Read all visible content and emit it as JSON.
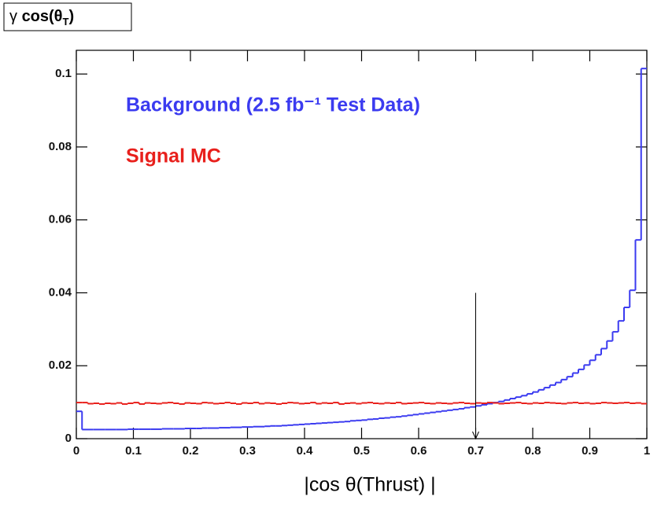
{
  "chart_data": {
    "type": "histogram",
    "title": {
      "symbol": "γ",
      "text": "cos(θ",
      "subscript": "T",
      "close": ")"
    },
    "x_label": "|cos θ(Thrust) |",
    "bins": [
      0,
      0.01,
      0.02,
      0.03,
      0.04,
      0.05,
      0.06,
      0.07,
      0.08,
      0.09,
      0.1,
      0.11,
      0.12,
      0.13,
      0.14,
      0.15,
      0.16,
      0.17,
      0.18,
      0.19,
      0.2,
      0.21,
      0.22,
      0.23,
      0.24,
      0.25,
      0.26,
      0.27,
      0.28,
      0.29,
      0.3,
      0.31,
      0.32,
      0.33,
      0.34,
      0.35,
      0.36,
      0.37,
      0.38,
      0.39,
      0.4,
      0.41,
      0.42,
      0.43,
      0.44,
      0.45,
      0.46,
      0.47,
      0.48,
      0.49,
      0.5,
      0.51,
      0.52,
      0.53,
      0.54,
      0.55,
      0.56,
      0.57,
      0.58,
      0.59,
      0.6,
      0.61,
      0.62,
      0.63,
      0.64,
      0.65,
      0.66,
      0.67,
      0.68,
      0.69,
      0.7,
      0.71,
      0.72,
      0.73,
      0.74,
      0.75,
      0.76,
      0.77,
      0.78,
      0.79,
      0.8,
      0.81,
      0.82,
      0.83,
      0.84,
      0.85,
      0.86,
      0.87,
      0.88,
      0.89,
      0.9,
      0.91,
      0.92,
      0.93,
      0.94,
      0.95,
      0.96,
      0.97,
      0.98,
      0.99,
      1
    ],
    "series": [
      {
        "name": "Background (2.5 fb⁻¹ Test Data)",
        "color": "#3b3bf0",
        "values": [
          0.0075,
          0.0025,
          0.0025,
          0.0025,
          0.0025,
          0.0025,
          0.0025,
          0.0025,
          0.0025,
          0.0026,
          0.0026,
          0.0026,
          0.0026,
          0.0026,
          0.0026,
          0.0027,
          0.0027,
          0.0027,
          0.0027,
          0.0028,
          0.0028,
          0.0028,
          0.0029,
          0.0029,
          0.0029,
          0.003,
          0.003,
          0.0031,
          0.0031,
          0.0032,
          0.0032,
          0.0033,
          0.0033,
          0.0034,
          0.0035,
          0.0035,
          0.0036,
          0.0037,
          0.0038,
          0.0039,
          0.004,
          0.0041,
          0.0042,
          0.0043,
          0.0044,
          0.0045,
          0.0046,
          0.0047,
          0.0049,
          0.005,
          0.0051,
          0.0053,
          0.0054,
          0.0056,
          0.0057,
          0.0059,
          0.006,
          0.0062,
          0.0064,
          0.0066,
          0.0068,
          0.007,
          0.0072,
          0.0074,
          0.0076,
          0.0078,
          0.008,
          0.0082,
          0.0085,
          0.0087,
          0.009,
          0.0093,
          0.0096,
          0.0099,
          0.0102,
          0.0106,
          0.011,
          0.0114,
          0.0118,
          0.0123,
          0.0128,
          0.0134,
          0.014,
          0.0147,
          0.0154,
          0.0162,
          0.017,
          0.018,
          0.019,
          0.0202,
          0.0215,
          0.023,
          0.0247,
          0.0268,
          0.0293,
          0.0323,
          0.036,
          0.0407,
          0.0545,
          0.1015
        ]
      },
      {
        "name": "Signal MC",
        "color": "#e8201c",
        "values": [
          0.0099,
          0.0099,
          0.0096,
          0.0097,
          0.0095,
          0.0097,
          0.0096,
          0.0098,
          0.0095,
          0.0097,
          0.0099,
          0.0095,
          0.0098,
          0.0097,
          0.0096,
          0.0098,
          0.0099,
          0.0097,
          0.0095,
          0.0098,
          0.0097,
          0.0096,
          0.0099,
          0.0098,
          0.0096,
          0.0097,
          0.0099,
          0.0097,
          0.0095,
          0.0098,
          0.0097,
          0.0099,
          0.0096,
          0.0098,
          0.0097,
          0.0095,
          0.0097,
          0.0099,
          0.0098,
          0.0096,
          0.0097,
          0.0099,
          0.0096,
          0.0098,
          0.0097,
          0.0099,
          0.0095,
          0.0097,
          0.0098,
          0.0096,
          0.0098,
          0.0099,
          0.0097,
          0.0096,
          0.0098,
          0.0097,
          0.0099,
          0.0096,
          0.0097,
          0.0098,
          0.0099,
          0.0097,
          0.0096,
          0.0098,
          0.0097,
          0.0096,
          0.0098,
          0.0099,
          0.0097,
          0.0096,
          0.0098,
          0.0097,
          0.0099,
          0.0098,
          0.0096,
          0.0097,
          0.0098,
          0.0099,
          0.0097,
          0.0096,
          0.0098,
          0.0097,
          0.0099,
          0.0098,
          0.0097,
          0.0096,
          0.0098,
          0.0099,
          0.0097,
          0.0098,
          0.0096,
          0.0097,
          0.0099,
          0.0098,
          0.0097,
          0.0098,
          0.0099,
          0.0097,
          0.0098,
          0.0096
        ]
      }
    ],
    "arrow": {
      "x": 0.7,
      "y_start": 0.04,
      "y_end": 0
    },
    "xlim": [
      0,
      1
    ],
    "xticks": [
      0,
      0.1,
      0.2,
      0.3,
      0.4,
      0.5,
      0.6,
      0.7,
      0.8,
      0.9,
      1
    ],
    "ylim": [
      0,
      0.1065
    ],
    "yticks": [
      0,
      0.02,
      0.04,
      0.06,
      0.08,
      0.1
    ]
  }
}
